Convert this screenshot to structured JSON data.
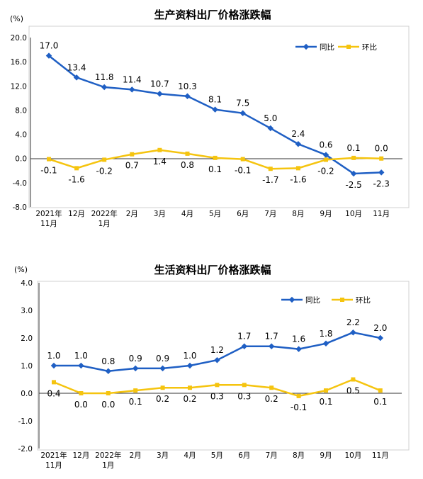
{
  "colors": {
    "yoy": "#1f5fc4",
    "mom": "#f5c40f"
  },
  "chart_data": [
    {
      "type": "line",
      "title": "生产资料出厂价格涨跌幅",
      "ylabel": "(%)",
      "ylim": [
        -8.0,
        20.0
      ],
      "yticks": [
        "20.0",
        "16.0",
        "12.0",
        "8.0",
        "4.0",
        "0.0",
        "-4.0",
        "-8.0"
      ],
      "ytick_values": [
        20,
        16,
        12,
        8,
        4,
        0,
        -4,
        -8
      ],
      "categories": [
        [
          "2021年",
          "11月"
        ],
        [
          "12月"
        ],
        [
          "2022年",
          "1月"
        ],
        [
          "2月"
        ],
        [
          "3月"
        ],
        [
          "4月"
        ],
        [
          "5月"
        ],
        [
          "6月"
        ],
        [
          "7月"
        ],
        [
          "8月"
        ],
        [
          "9月"
        ],
        [
          "10月"
        ],
        [
          "11月"
        ]
      ],
      "legend_position": "top-right",
      "series": [
        {
          "name": "同比",
          "values": [
            17.0,
            13.4,
            11.8,
            11.4,
            10.7,
            10.3,
            8.1,
            7.5,
            5.0,
            2.4,
            0.6,
            -2.5,
            -2.3
          ],
          "labels": [
            "17.0",
            "13.4",
            "11.8",
            "11.4",
            "10.7",
            "10.3",
            "8.1",
            "7.5",
            "5.0",
            "2.4",
            "0.6",
            "-2.5",
            "-2.3"
          ]
        },
        {
          "name": "环比",
          "values": [
            -0.1,
            -1.6,
            -0.2,
            0.7,
            1.4,
            0.8,
            0.1,
            -0.1,
            -1.7,
            -1.6,
            -0.2,
            0.1,
            0.0
          ],
          "labels": [
            "-0.1",
            "-1.6",
            "-0.2",
            "0.7",
            "1.4",
            "0.8",
            "0.1",
            "-0.1",
            "-1.7",
            "-1.6",
            "-0.2",
            "0.1",
            "0.0"
          ]
        }
      ]
    },
    {
      "type": "line",
      "title": "生活资料出厂价格涨跌幅",
      "ylabel": "(%)",
      "ylim": [
        -2.0,
        4.0
      ],
      "yticks": [
        "4.0",
        "3.0",
        "2.0",
        "1.0",
        "0.0",
        "-1.0",
        "-2.0"
      ],
      "ytick_values": [
        4,
        3,
        2,
        1,
        0,
        -1,
        -2
      ],
      "categories": [
        [
          "2021年",
          "11月"
        ],
        [
          "12月"
        ],
        [
          "2022年",
          "1月"
        ],
        [
          "2月"
        ],
        [
          "3月"
        ],
        [
          "4月"
        ],
        [
          "5月"
        ],
        [
          "6月"
        ],
        [
          "7月"
        ],
        [
          "8月"
        ],
        [
          "9月"
        ],
        [
          "10月"
        ],
        [
          "11月"
        ]
      ],
      "legend_position": "top-right",
      "series": [
        {
          "name": "同比",
          "values": [
            1.0,
            1.0,
            0.8,
            0.9,
            0.9,
            1.0,
            1.2,
            1.7,
            1.7,
            1.6,
            1.8,
            2.2,
            2.0
          ],
          "labels": [
            "1.0",
            "1.0",
            "0.8",
            "0.9",
            "0.9",
            "1.0",
            "1.2",
            "1.7",
            "1.7",
            "1.6",
            "1.8",
            "2.2",
            "2.0"
          ]
        },
        {
          "name": "环比",
          "values": [
            0.4,
            0.0,
            0.0,
            0.1,
            0.2,
            0.2,
            0.3,
            0.3,
            0.2,
            -0.1,
            0.1,
            0.5,
            0.1
          ],
          "labels": [
            "0.4",
            "0.0",
            "0.0",
            "0.1",
            "0.2",
            "0.2",
            "0.3",
            "0.3",
            "0.2",
            "-0.1",
            "0.1",
            "0.5",
            "0.1"
          ]
        }
      ]
    }
  ]
}
